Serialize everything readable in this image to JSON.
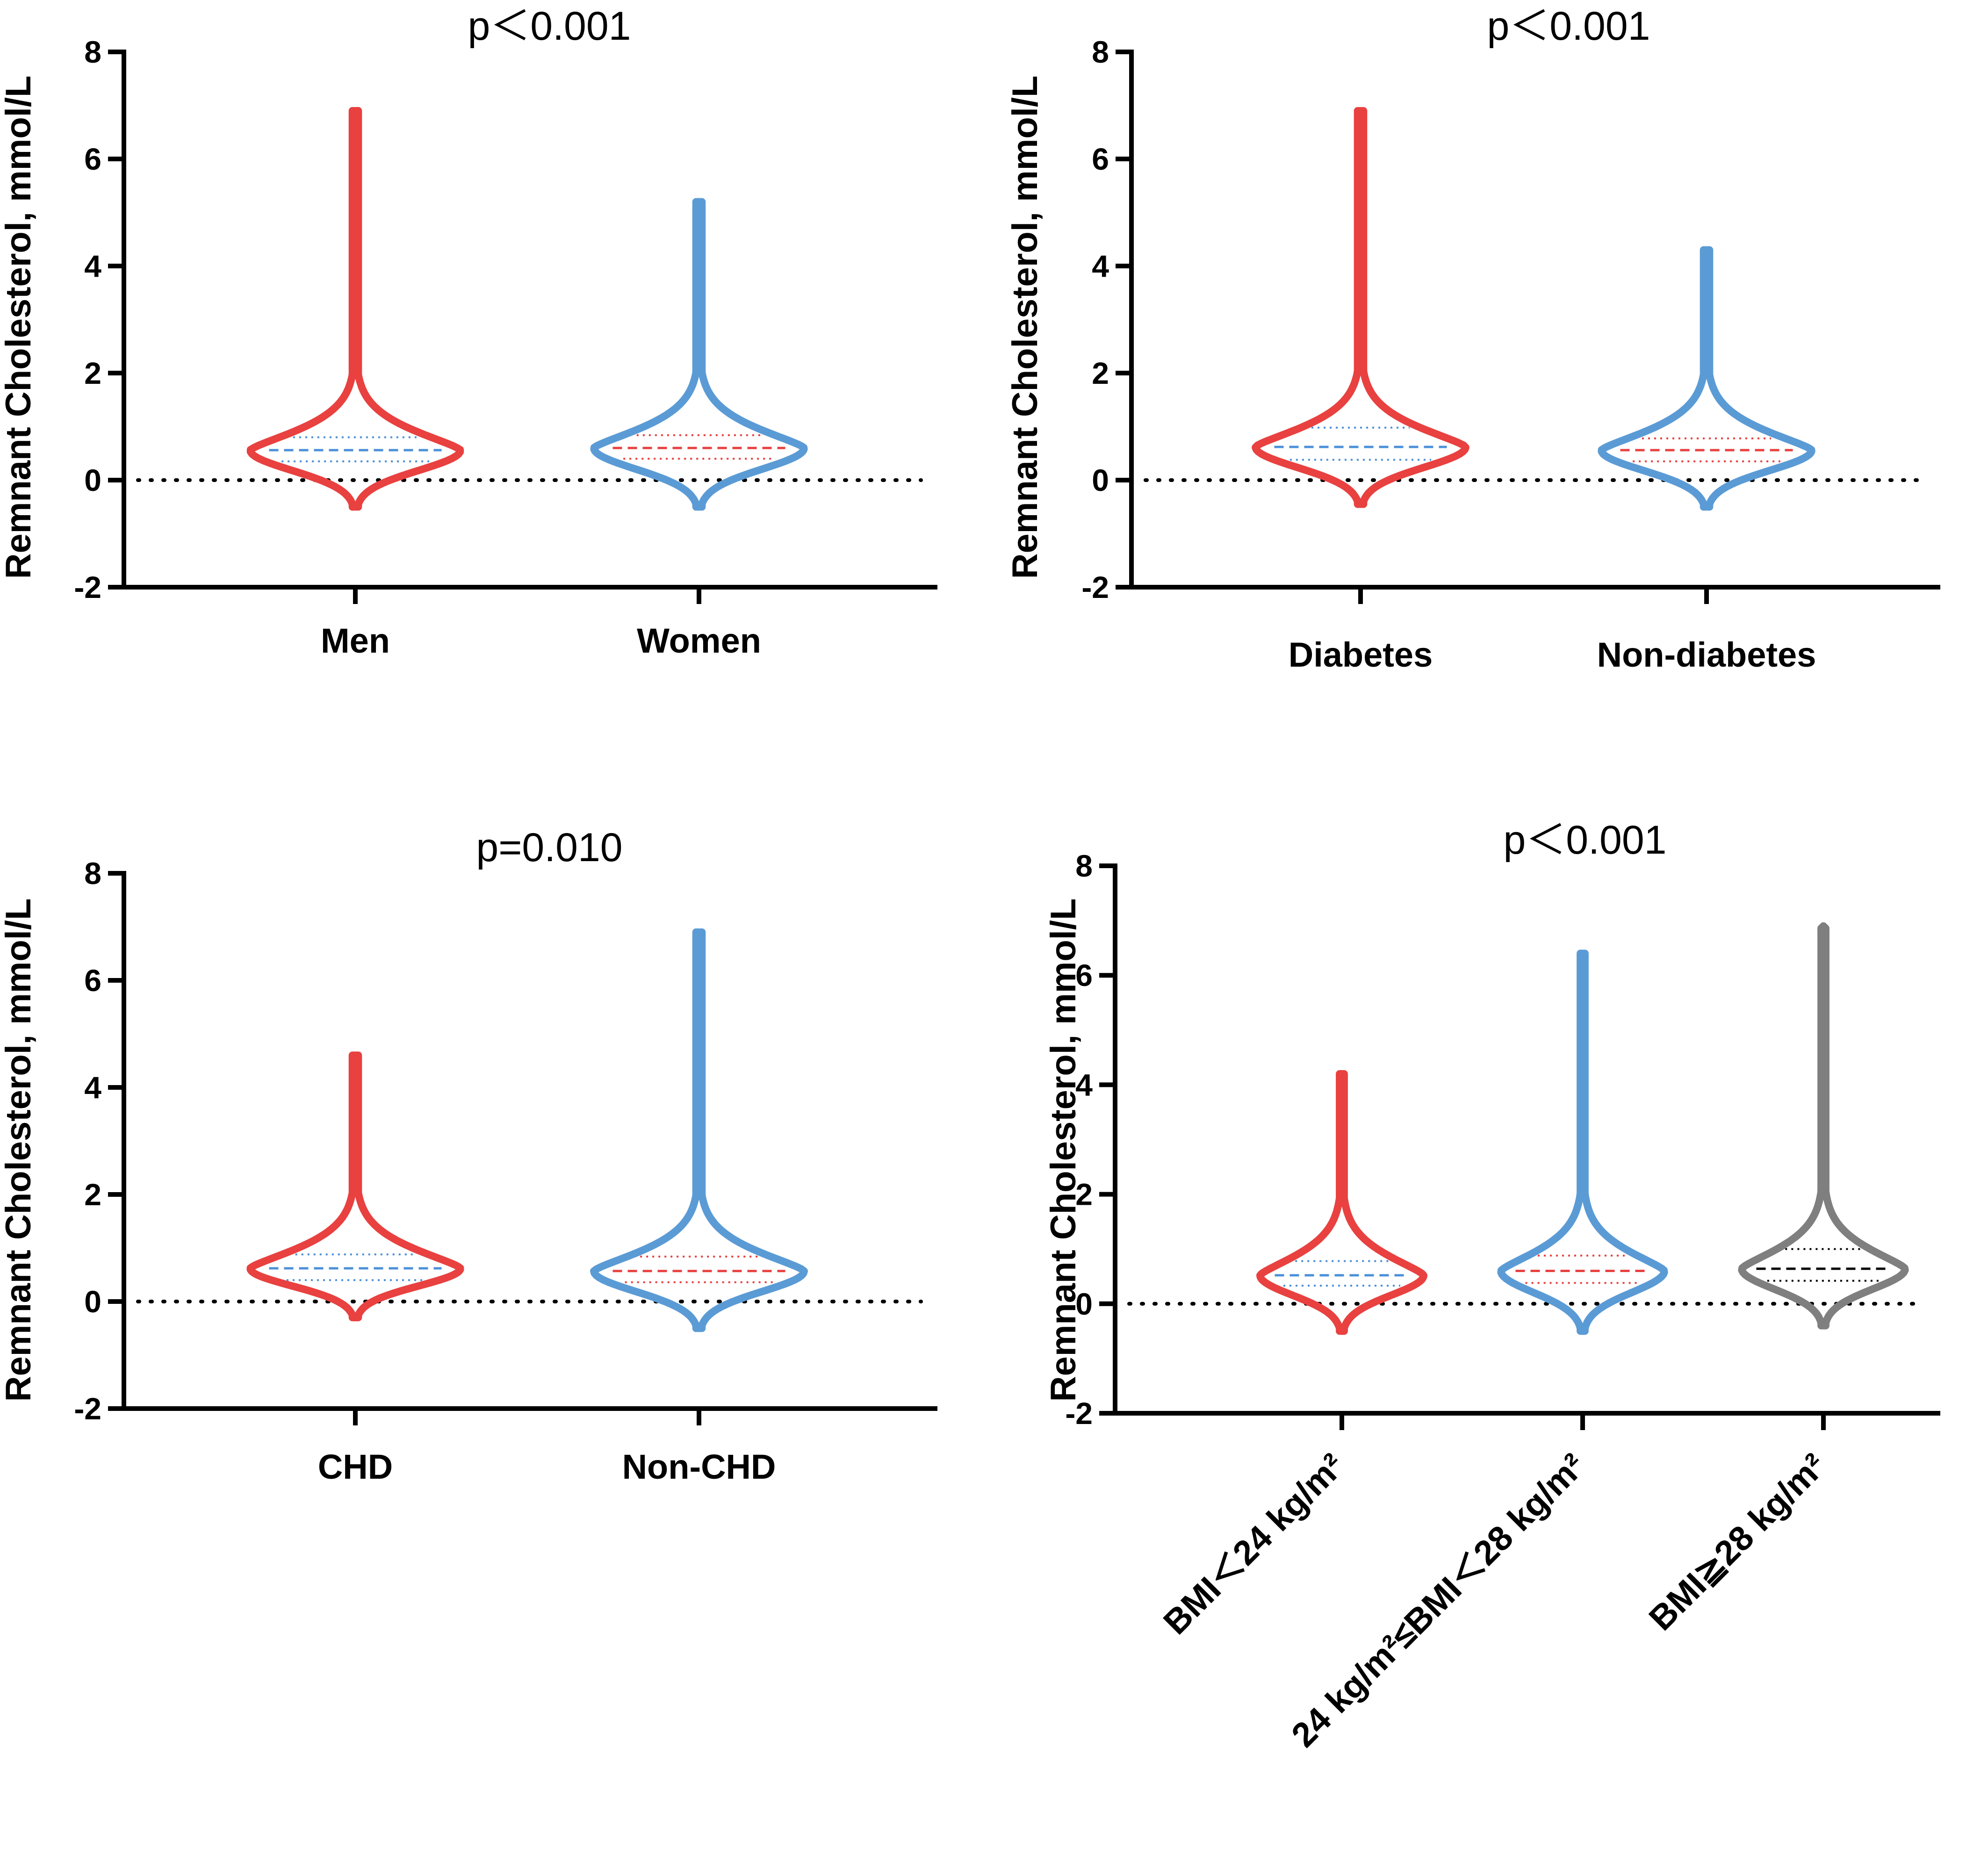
{
  "chart_data": [
    {
      "type": "violin",
      "title": "p＜0.001",
      "ylabel": "Remnant Cholesterol, mmol/L",
      "xlabel": "",
      "ylim": [
        -2,
        8
      ],
      "yticks": [
        "-2",
        "0",
        "2",
        "4",
        "6",
        "8"
      ],
      "reference_line_y": 0,
      "categories": [
        "Men",
        "Women"
      ],
      "series": [
        {
          "name": "Men",
          "color": "#e84140",
          "line_color": "#4a90d9",
          "min": -0.5,
          "max": 6.9,
          "median": 0.56,
          "q1": 0.35,
          "q3": 0.8
        },
        {
          "name": "Women",
          "color": "#5b9bd5",
          "line_color": "#e84140",
          "min": -0.5,
          "max": 5.2,
          "median": 0.6,
          "q1": 0.4,
          "q3": 0.84
        }
      ]
    },
    {
      "type": "violin",
      "title": "p＜0.001",
      "ylabel": "Remnant Cholesterol, mmol/L",
      "xlabel": "",
      "ylim": [
        -2,
        8
      ],
      "yticks": [
        "-2",
        "0",
        "2",
        "4",
        "6",
        "8"
      ],
      "reference_line_y": 0,
      "categories": [
        "Diabetes",
        "Non-diabetes"
      ],
      "series": [
        {
          "name": "Diabetes",
          "color": "#e84140",
          "line_color": "#4a90d9",
          "min": -0.45,
          "max": 6.9,
          "median": 0.62,
          "q1": 0.38,
          "q3": 0.98
        },
        {
          "name": "Non-diabetes",
          "color": "#5b9bd5",
          "line_color": "#e84140",
          "min": -0.5,
          "max": 4.3,
          "median": 0.56,
          "q1": 0.35,
          "q3": 0.78
        }
      ]
    },
    {
      "type": "violin",
      "title": "p=0.010",
      "ylabel": "Remnant Cholesterol, mmol/L",
      "xlabel": "",
      "ylim": [
        -2,
        8
      ],
      "yticks": [
        "-2",
        "0",
        "2",
        "4",
        "6",
        "8"
      ],
      "reference_line_y": 0,
      "categories": [
        "CHD",
        "Non-CHD"
      ],
      "series": [
        {
          "name": "CHD",
          "color": "#e84140",
          "line_color": "#4a90d9",
          "min": -0.3,
          "max": 4.6,
          "median": 0.62,
          "q1": 0.4,
          "q3": 0.88
        },
        {
          "name": "Non-CHD",
          "color": "#5b9bd5",
          "line_color": "#e84140",
          "min": -0.5,
          "max": 6.9,
          "median": 0.57,
          "q1": 0.36,
          "q3": 0.84
        }
      ]
    },
    {
      "type": "violin",
      "title": "p＜0.001",
      "ylabel": "Remnant Cholesterol, mmol/L",
      "xlabel": "",
      "ylim": [
        -2,
        8
      ],
      "yticks": [
        "-2",
        "0",
        "2",
        "4",
        "6",
        "8"
      ],
      "reference_line_y": 0,
      "categories": [
        "BMI＜24 kg/m²",
        "24 kg/m²≤BMI＜28 kg/m²",
        "BMI≧28 kg/m²"
      ],
      "series": [
        {
          "name": "BMI＜24 kg/m²",
          "color": "#e84140",
          "line_color": "#4a90d9",
          "min": -0.5,
          "max": 4.2,
          "median": 0.52,
          "q1": 0.33,
          "q3": 0.78
        },
        {
          "name": "24 kg/m²≤BMI＜28 kg/m²",
          "color": "#5b9bd5",
          "line_color": "#e84140",
          "min": -0.5,
          "max": 6.4,
          "median": 0.6,
          "q1": 0.38,
          "q3": 0.88
        },
        {
          "name": "BMI≧28 kg/m²",
          "color": "#7f7f7f",
          "line_color": "#000000",
          "min": -0.4,
          "max": 6.9,
          "median": 0.64,
          "q1": 0.42,
          "q3": 1.0
        }
      ]
    }
  ]
}
